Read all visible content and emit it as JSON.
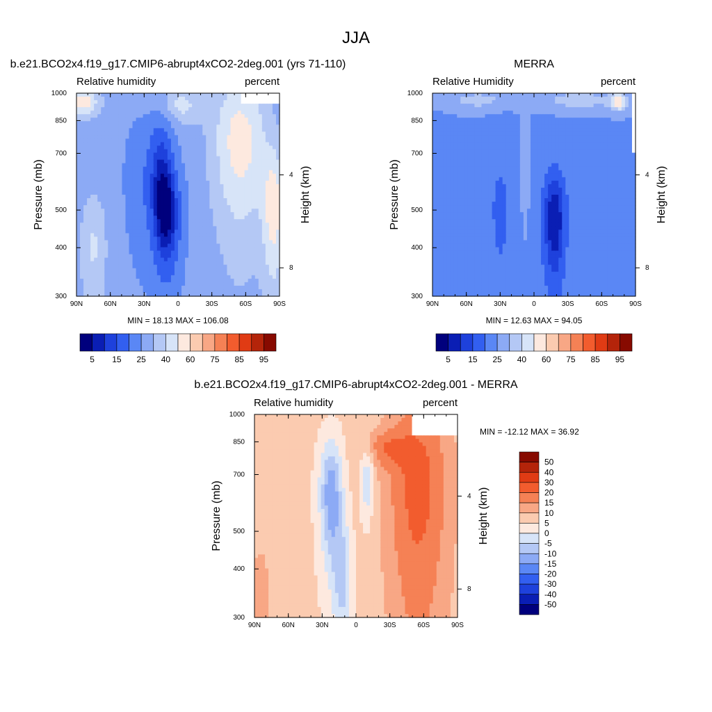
{
  "figure": {
    "title": "JJA"
  },
  "scales": {
    "abs_levels": [
      "5",
      "15",
      "25",
      "40",
      "60",
      "75",
      "85",
      "95"
    ],
    "abs_colors": [
      "#00007d",
      "#0a1eb4",
      "#1e41dc",
      "#325ff0",
      "#5a87f5",
      "#8caaf5",
      "#b4c8f5",
      "#d7e4f8",
      "#fde9df",
      "#fbcbb0",
      "#f8a785",
      "#f58155",
      "#f25c2e",
      "#e03b14",
      "#b4240a",
      "#870a00"
    ],
    "diff_levels": [
      "50",
      "40",
      "30",
      "20",
      "15",
      "10",
      "5",
      "0",
      "-5",
      "-10",
      "-15",
      "-20",
      "-30",
      "-40",
      "-50"
    ],
    "diff_colors": [
      "#870a00",
      "#b4240a",
      "#e03b14",
      "#f25c2e",
      "#f58155",
      "#f8a785",
      "#fbcbb0",
      "#fde9df",
      "#d7e4f8",
      "#b4c8f5",
      "#8caaf5",
      "#5a87f5",
      "#325ff0",
      "#1e41dc",
      "#0a1eb4",
      "#00007d"
    ]
  },
  "chart_data": [
    {
      "type": "heatmap",
      "title": "b.e21.BCO2x4.f19_g17.CMIP6-abrupt4xCO2-2deg.001 (yrs 71-110)",
      "left_string": "Relative humidity",
      "right_string": "percent",
      "ylabel": "Pressure (mb)",
      "y2label": "Height (km)",
      "xticks": [
        "90N",
        "60N",
        "30N",
        "0",
        "30S",
        "60S",
        "90S"
      ],
      "yticks": [
        "300",
        "400",
        "500",
        "700",
        "850",
        "1000"
      ],
      "y2ticks": [
        "8",
        "4"
      ],
      "xlim": [
        90,
        -90
      ],
      "ylim": [
        1000,
        300
      ],
      "min": 18.13,
      "max": 106.08,
      "stats": "MIN =  18.13   MAX = 106.08",
      "levels": [
        5,
        15,
        25,
        40,
        60,
        75,
        85,
        95
      ],
      "features": [
        {
          "lat": 10,
          "p": 480,
          "value": 8,
          "sx": 14,
          "sp": 170
        },
        {
          "lat": 35,
          "p": 600,
          "value": 48,
          "sx": 14,
          "sp": 260
        },
        {
          "lat": 15,
          "p": 700,
          "value": 30,
          "sx": 12,
          "sp": 220
        },
        {
          "lat": -55,
          "p": 750,
          "value": 100,
          "sx": 25,
          "sp": 350
        },
        {
          "lat": -85,
          "p": 500,
          "value": 98,
          "sx": 10,
          "sp": 200
        },
        {
          "lat": 85,
          "p": 950,
          "value": 102,
          "sx": 15,
          "sp": 80
        },
        {
          "lat": 0,
          "p": 930,
          "value": 90,
          "sx": 20,
          "sp": 100
        },
        {
          "lat": 75,
          "p": 400,
          "value": 86,
          "sx": 12,
          "sp": 150
        }
      ],
      "base": 68,
      "masked": [
        {
          "lat_from": -55,
          "lat_to": -90,
          "p_from": 930,
          "p_to": 1000
        }
      ]
    },
    {
      "type": "heatmap",
      "title": "MERRA",
      "left_string": "Relative Humidity",
      "right_string": "percent",
      "ylabel": "Pressure (mb)",
      "y2label": "Height (km)",
      "xticks": [
        "90N",
        "60N",
        "30N",
        "0",
        "30S",
        "60S",
        "90S"
      ],
      "yticks": [
        "300",
        "400",
        "500",
        "700",
        "850",
        "1000"
      ],
      "y2ticks": [
        "8",
        "4"
      ],
      "xlim": [
        90,
        -90
      ],
      "ylim": [
        1000,
        300
      ],
      "min": 12.63,
      "max": 94.05,
      "stats": "MIN =  12.63   MAX =  94.05",
      "levels": [
        5,
        15,
        25,
        40,
        60,
        75,
        85,
        95
      ],
      "features": [
        {
          "lat": -18,
          "p": 470,
          "value": 5,
          "sx": 12,
          "sp": 180
        },
        {
          "lat": 30,
          "p": 500,
          "value": 36,
          "sx": 13,
          "sp": 250
        },
        {
          "lat": 8,
          "p": 650,
          "value": 72,
          "sx": 4,
          "sp": 200
        },
        {
          "lat": 50,
          "p": 960,
          "value": 80,
          "sx": 30,
          "sp": 60
        },
        {
          "lat": -40,
          "p": 960,
          "value": 82,
          "sx": 40,
          "sp": 60
        },
        {
          "lat": -75,
          "p": 950,
          "value": 92,
          "sx": 8,
          "sp": 60
        }
      ],
      "base": 58,
      "masked": [
        {
          "lat_from": -88,
          "lat_to": -90,
          "p_from": 700,
          "p_to": 1000
        }
      ]
    },
    {
      "type": "heatmap",
      "title": "b.e21.BCO2x4.f19_g17.CMIP6-abrupt4xCO2-2deg.001 - MERRA",
      "left_string": "Relative humidity",
      "right_string": "percent",
      "ylabel": "Pressure (mb)",
      "y2label": "Height (km)",
      "xticks": [
        "90N",
        "60N",
        "30N",
        "0",
        "30S",
        "60S",
        "90S"
      ],
      "yticks": [
        "300",
        "400",
        "500",
        "700",
        "850",
        "1000"
      ],
      "y2ticks": [
        "8",
        "4"
      ],
      "xlim": [
        90,
        -90
      ],
      "ylim": [
        1000,
        300
      ],
      "min": -12.12,
      "max": 36.92,
      "stats": "MIN = -12.12   MAX =  36.92",
      "levels": [
        -50,
        -40,
        -30,
        -20,
        -15,
        -10,
        -5,
        0,
        5,
        10,
        15,
        20,
        30,
        40,
        50
      ],
      "features": [
        {
          "lat": 22,
          "p": 620,
          "value": -14,
          "sx": 10,
          "sp": 220
        },
        {
          "lat": 12,
          "p": 380,
          "value": -6,
          "sx": 8,
          "sp": 150
        },
        {
          "lat": -10,
          "p": 680,
          "value": -6,
          "sx": 6,
          "sp": 150
        },
        {
          "lat": -55,
          "p": 650,
          "value": 22,
          "sx": 30,
          "sp": 500
        },
        {
          "lat": -25,
          "p": 820,
          "value": 15,
          "sx": 20,
          "sp": 90
        },
        {
          "lat": 85,
          "p": 350,
          "value": 15,
          "sx": 8,
          "sp": 100
        }
      ],
      "base": 6,
      "masked": [
        {
          "lat_from": -50,
          "lat_to": -90,
          "p_from": 880,
          "p_to": 1000
        }
      ]
    }
  ]
}
